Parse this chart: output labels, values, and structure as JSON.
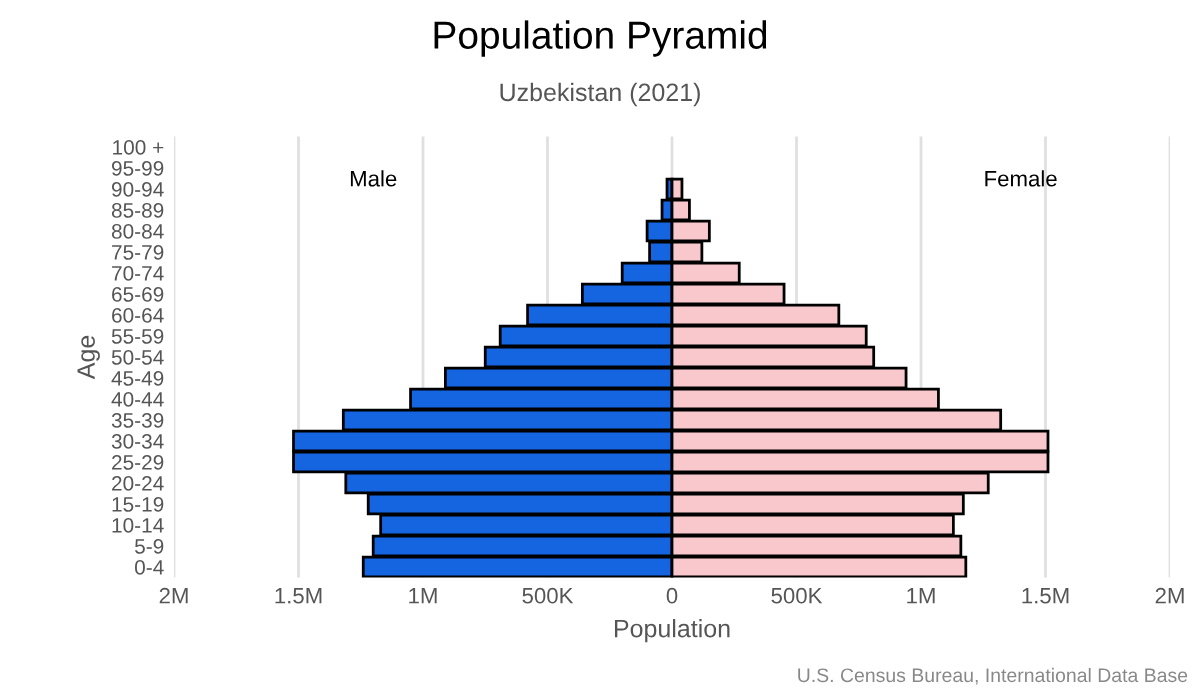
{
  "chart_data": {
    "type": "bar",
    "orientation": "horizontal",
    "title": "Population Pyramid",
    "subtitle": "Uzbekistan (2021)",
    "xlabel": "Population",
    "ylabel": "Age",
    "categories": [
      "100 +",
      "95-99",
      "90-94",
      "85-89",
      "80-84",
      "75-79",
      "70-74",
      "65-69",
      "60-64",
      "55-59",
      "50-54",
      "45-49",
      "40-44",
      "35-39",
      "30-34",
      "25-29",
      "20-24",
      "15-19",
      "10-14",
      "5-9",
      "0-4"
    ],
    "series": [
      {
        "name": "Male",
        "color": "#1565e0",
        "values": [
          0,
          0,
          -20000,
          -40000,
          -100000,
          -90000,
          -200000,
          -360000,
          -580000,
          -690000,
          -750000,
          -910000,
          -1050000,
          -1320000,
          -1520000,
          -1520000,
          -1310000,
          -1220000,
          -1170000,
          -1200000,
          -1240000
        ]
      },
      {
        "name": "Female",
        "color": "#f8c8cc",
        "values": [
          0,
          0,
          40000,
          70000,
          150000,
          120000,
          270000,
          450000,
          670000,
          780000,
          810000,
          940000,
          1070000,
          1320000,
          1510000,
          1510000,
          1270000,
          1170000,
          1130000,
          1160000,
          1180000
        ]
      }
    ],
    "xlim": [
      -2000000,
      2000000
    ],
    "xticks": [
      {
        "value": -2000000,
        "label": "2M"
      },
      {
        "value": -1500000,
        "label": "1.5M"
      },
      {
        "value": -1000000,
        "label": "1M"
      },
      {
        "value": -500000,
        "label": "500K"
      },
      0,
      {
        "value": 500000,
        "label": "500K"
      },
      {
        "value": 1000000,
        "label": "1M"
      },
      {
        "value": 1500000,
        "label": "1.5M"
      },
      {
        "value": 2000000,
        "label": "2M"
      }
    ],
    "grid": "x",
    "legend": false,
    "stacked": true,
    "annotations": [
      "U.S. Census Bureau, International Data Base"
    ]
  }
}
